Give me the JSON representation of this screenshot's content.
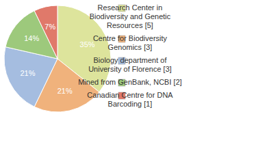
{
  "chart_data": {
    "type": "pie",
    "categories": [
      "Research Center in Biodiversity and Genetic Resources [5]",
      "Centre for Biodiversity Genomics [3]",
      "Biology department of University of Florence [3]",
      "Mined from GenBank, NCBI [2]",
      "Canadian Centre for DNA Barcoding [1]"
    ],
    "values": [
      35,
      21,
      21,
      14,
      7
    ],
    "value_labels": [
      "35%",
      "21%",
      "21%",
      "14%",
      "7%"
    ],
    "colors": [
      "#dde49c",
      "#f0b27c",
      "#a5bde0",
      "#9dc97c",
      "#e0796a"
    ],
    "data_labels": true,
    "legend": "right"
  }
}
